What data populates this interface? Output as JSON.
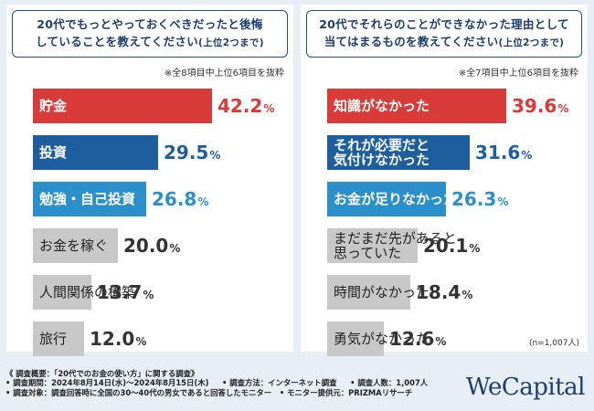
{
  "colors": {
    "red": "#d93b39",
    "blue": "#1f5e9e",
    "sky": "#2b8fcc",
    "gray": "#c8c8c8",
    "red_text": "#d93b39",
    "blue_text": "#1f5e9e",
    "sky_text": "#2b8fcc",
    "gray_text": "#333333"
  },
  "left": {
    "title_line1": "20代でもっとやっておくべきだったと後悔",
    "title_line2": "していることを教えてください",
    "title_sub": "(上位2つまで)",
    "note": "※全8項目中上位6項目を抜粋"
  },
  "right": {
    "title_line1": "20代でそれらのことができなかった理由として",
    "title_line2": "当てはまるものを教えてください",
    "title_sub": "(上位2つまで)",
    "note": "※全7項目中上位6項目を抜粋",
    "n": "(n=1,007人)"
  },
  "chart_data": [
    {
      "type": "bar",
      "orientation": "horizontal",
      "title": "20代でもっとやっておくべきだったと後悔していることを教えてください(上位2つまで)",
      "unit": "%",
      "xlim": [
        0,
        42.2
      ],
      "categories": [
        "貯金",
        "投資",
        "勉強・自己投資",
        "お金を稼ぐ",
        "人間関係の構築",
        "旅行"
      ],
      "values": [
        42.2,
        29.5,
        26.8,
        20.0,
        13.7,
        12.0
      ],
      "value_labels": [
        "42.2",
        "29.5",
        "26.8",
        "20.0",
        "13.7",
        "12.0"
      ],
      "bar_colors": [
        "red",
        "blue",
        "sky",
        "gray",
        "gray",
        "gray"
      ]
    },
    {
      "type": "bar",
      "orientation": "horizontal",
      "title": "20代でそれらのことができなかった理由として当てはまるものを教えてください(上位2つまで)",
      "unit": "%",
      "xlim": [
        0,
        39.6
      ],
      "categories": [
        "知識がなかった",
        "それが必要だと\n気付けなかった",
        "お金が足りなかった",
        "まだまだ先があると\n思っていた",
        "時間がなかった",
        "勇気がなかった"
      ],
      "values": [
        39.6,
        31.6,
        26.3,
        20.1,
        18.4,
        12.6
      ],
      "value_labels": [
        "39.6",
        "31.6",
        "26.3",
        "20.1",
        "18.4",
        "12.6"
      ],
      "bar_colors": [
        "red",
        "blue",
        "sky",
        "gray",
        "gray",
        "gray"
      ]
    }
  ],
  "footer": {
    "line1": "《 調査概要：「20代でのお金の使い方」に関する調査》",
    "line2a": "• 調査期間：2024年8月14日(水)～2024年8月15日(木)",
    "line2b": "• 調査方法：インターネット調査",
    "line2c": "• 調査人数：1,007人",
    "line3a": "• 調査対象：調査回答時に全国の30～40代の男女であると回答したモニター",
    "line3b": "• モニター提供元：PRIZMAリサーチ"
  },
  "logo": "WeCapital"
}
